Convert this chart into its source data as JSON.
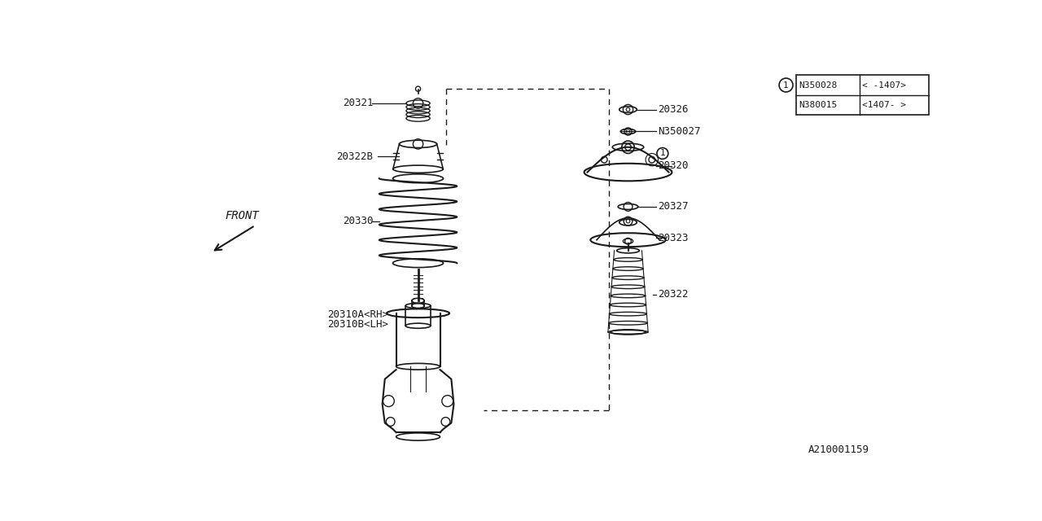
{
  "bg_color": "#ffffff",
  "line_color": "#1a1a1a",
  "title_bottom_right": "A210001159",
  "row1_part": "N350028",
  "row1_note": "< -1407>",
  "row2_part": "N380015",
  "row2_note": "<1407- >",
  "figsize": [
    12.8,
    6.4
  ],
  "dpi": 100
}
